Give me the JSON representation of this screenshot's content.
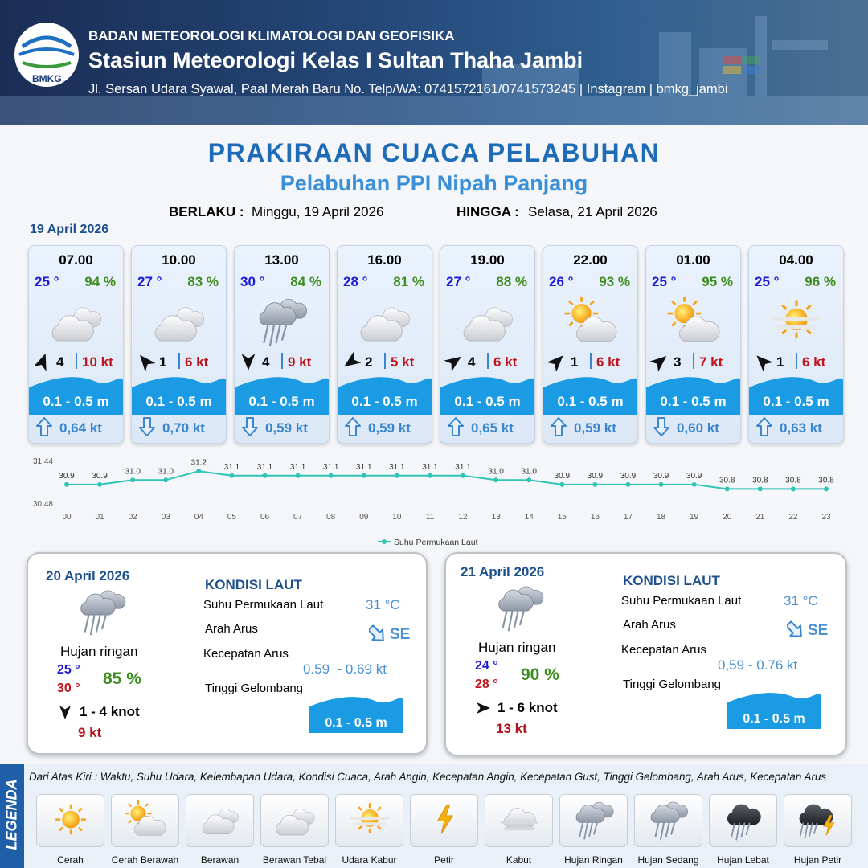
{
  "header": {
    "logo_text": "BMKG",
    "agency": "BADAN METEOROLOGI KLIMATOLOGI DAN GEOFISIKA",
    "station": "Stasiun Meteorologi Kelas I Sultan Thaha Jambi",
    "address": "Jl. Sersan Udara Syawal, Paal Merah Baru No. Telp/WA: 0741572161/0741573245 | Instagram | bmkg_jambi"
  },
  "title": "PRAKIRAAN CUACA PELABUHAN",
  "subtitle": "Pelabuhan PPI Nipah Panjang",
  "valid_from_label": "BERLAKU :",
  "valid_from": "Minggu, 19 April 2026",
  "valid_to_label": "HINGGA :",
  "valid_to": "Selasa, 21 April 2026",
  "day1_date": "19 April 2026",
  "forecasts": [
    {
      "time": "07.00",
      "temp": "25 °",
      "humidity": "94 %",
      "wind": "4",
      "gust": "10 kt",
      "wave": "0.1 - 0.5 m",
      "current": "0,64 kt"
    },
    {
      "time": "10.00",
      "temp": "27 °",
      "humidity": "83 %",
      "wind": "1",
      "gust": "6 kt",
      "wave": "0.1 - 0.5 m",
      "current": "0,70 kt"
    },
    {
      "time": "13.00",
      "temp": "30 °",
      "humidity": "84 %",
      "wind": "4",
      "gust": "9 kt",
      "wave": "0.1 - 0.5 m",
      "current": "0,59 kt"
    },
    {
      "time": "16.00",
      "temp": "28 °",
      "humidity": "81 %",
      "wind": "2",
      "gust": "5 kt",
      "wave": "0.1 - 0.5 m",
      "current": "0,59 kt"
    },
    {
      "time": "19.00",
      "temp": "27 °",
      "humidity": "88 %",
      "wind": "4",
      "gust": "6 kt",
      "wave": "0.1 - 0.5 m",
      "current": "0,65 kt"
    },
    {
      "time": "22.00",
      "temp": "26 °",
      "humidity": "93 %",
      "wind": "1",
      "gust": "6 kt",
      "wave": "0.1 - 0.5 m",
      "current": "0,59 kt"
    },
    {
      "time": "01.00",
      "temp": "25 °",
      "humidity": "95 %",
      "wind": "3",
      "gust": "7 kt",
      "wave": "0.1 - 0.5 m",
      "current": "0,60 kt"
    },
    {
      "time": "04.00",
      "temp": "25 °",
      "humidity": "96 %",
      "wind": "1",
      "gust": "6 kt",
      "wave": "0.1 - 0.5 m",
      "current": "0,63 kt"
    }
  ],
  "chart_data": {
    "type": "line",
    "categories": [
      "00",
      "01",
      "02",
      "03",
      "04",
      "05",
      "06",
      "07",
      "08",
      "09",
      "10",
      "11",
      "12",
      "13",
      "14",
      "15",
      "16",
      "17",
      "18",
      "19",
      "20",
      "21",
      "22",
      "23"
    ],
    "series": [
      {
        "name": "Suhu Permukaan Laut",
        "color": "#2ec4b6",
        "values": [
          30.9,
          30.9,
          31.0,
          31.0,
          31.2,
          31.1,
          31.1,
          31.1,
          31.1,
          31.1,
          31.1,
          31.1,
          31.1,
          31.0,
          31.0,
          30.9,
          30.9,
          30.9,
          30.9,
          30.9,
          30.8,
          30.8,
          30.8,
          30.8
        ],
        "value_labels": [
          "30.9",
          "30.9",
          "31.0",
          "31.0",
          "31.2",
          "31.1",
          "31.1",
          "31.1",
          "31.1",
          "31.1",
          "31.1",
          "31.1",
          "31.1",
          "31.0",
          "31.0",
          "30.9",
          "30.9",
          "30.9",
          "30.9",
          "30.9",
          "30.8",
          "30.8",
          "30.8",
          "30.8"
        ]
      }
    ],
    "ylim": [
      30.48,
      31.44
    ],
    "yticks": [
      30.48,
      31.44
    ]
  },
  "days": [
    {
      "date": "20 April 2026",
      "condition": "Hujan ringan",
      "temp_min": "25 °",
      "temp_max": "30 °",
      "humidity": "85 %",
      "wind": "1 - 4 knot",
      "gust": "9 kt",
      "sea_title": "KONDISI LAUT",
      "sst_label": "Suhu Permukaan Laut",
      "sst": "31 °C",
      "current_dir_label": "Arah Arus",
      "current_dir": "SE",
      "current_speed_label": "Kecepatan Arus",
      "current_speed": "0.59  - 0.69 kt",
      "wave_label": "Tinggi Gelombang",
      "wave": "0.1 - 0.5 m"
    },
    {
      "date": "21 April 2026",
      "condition": "Hujan ringan",
      "temp_min": "24 °",
      "temp_max": "28 °",
      "humidity": "90 %",
      "wind": "1 - 6 knot",
      "gust": "13 kt",
      "sea_title": "KONDISI LAUT",
      "sst_label": "Suhu Permukaan Laut",
      "sst": "31 °C",
      "current_dir_label": "Arah Arus",
      "current_dir": "SE",
      "current_speed_label": "Kecepatan Arus",
      "current_speed": "0,59 - 0.76 kt",
      "wave_label": "Tinggi Gelombang",
      "wave": "0.1 - 0.5 m"
    }
  ],
  "legend": {
    "title": "LEGENDA",
    "description": "Dari Atas Kiri : Waktu, Suhu Udara, Kelembapan Udara, Kondisi Cuaca, Arah Angin, Kecepatan Angin, Kecepatan Gust, Tinggi Gelombang, Arah Arus, Kecepatan Arus",
    "items": [
      "Cerah",
      "Cerah Berawan",
      "Berawan",
      "Berawan Tebal",
      "Udara Kabur",
      "Petir",
      "Kabut",
      "Hujan Ringan",
      "Hujan Sedang",
      "Hujan Lebat",
      "Hujan Petir"
    ]
  }
}
